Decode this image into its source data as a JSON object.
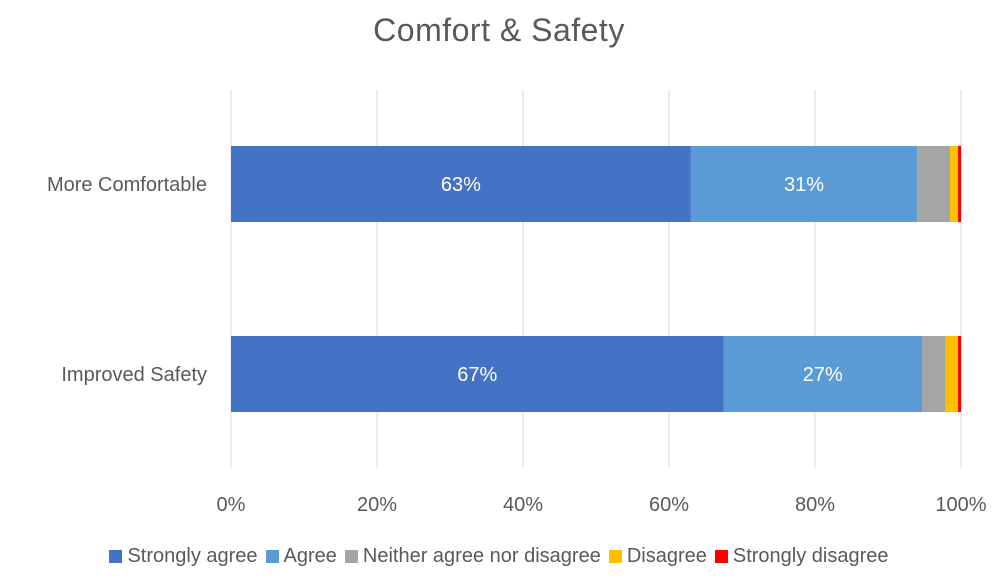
{
  "chart_data": {
    "type": "bar",
    "orientation": "horizontal",
    "stacked": "100%",
    "title": "Comfort & Safety",
    "categories": [
      "More Comfortable",
      "Improved Safety"
    ],
    "series": [
      {
        "name": "Strongly agree",
        "color": "#4472C4",
        "values": [
          63,
          67
        ],
        "labels": [
          "63%",
          "67%"
        ]
      },
      {
        "name": "Agree",
        "color": "#5B9BD5",
        "values": [
          31,
          27
        ],
        "labels": [
          "31%",
          "27%"
        ]
      },
      {
        "name": "Neither agree nor disagree",
        "color": "#A5A5A5",
        "values": [
          4.5,
          3.2
        ],
        "labels": [
          "",
          ""
        ]
      },
      {
        "name": "Disagree",
        "color": "#FFC000",
        "values": [
          1.1,
          1.7
        ],
        "labels": [
          "",
          ""
        ]
      },
      {
        "name": "Strongly disagree",
        "color": "#FF0000",
        "values": [
          0.4,
          0.4
        ],
        "labels": [
          "",
          ""
        ]
      }
    ],
    "xlim": [
      0,
      100
    ],
    "xticks": [
      "0%",
      "20%",
      "40%",
      "60%",
      "80%",
      "100%"
    ],
    "grid": "vertical",
    "legend": "bottom"
  }
}
